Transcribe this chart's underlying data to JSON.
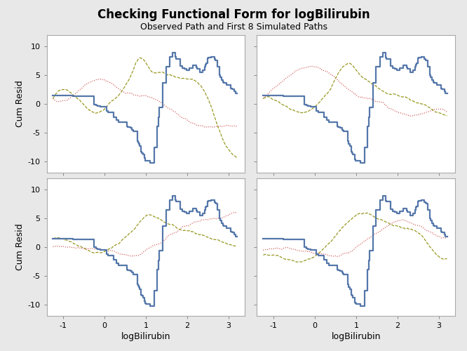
{
  "title": "Checking Functional Form for logBilirubin",
  "subtitle": "Observed Path and First 8 Simulated Paths",
  "xlabel": "logBilirubin",
  "ylabel": "Cum Resid",
  "xlim": [
    -1.4,
    3.4
  ],
  "ylim": [
    -12,
    12
  ],
  "xticks": [
    -1,
    0,
    1,
    2,
    3
  ],
  "yticks": [
    -10,
    -5,
    0,
    5,
    10
  ],
  "background_color": "#e8e8e8",
  "panel_bg": "#ffffff",
  "observed_color": "#5577aa",
  "sim_color_red": "#cc4444",
  "sim_color_olive": "#888800",
  "observed_lw": 1.6,
  "sim_lw_red": 0.85,
  "sim_lw_olive": 0.85,
  "title_fontsize": 12,
  "subtitle_fontsize": 9,
  "tick_fontsize": 8,
  "label_fontsize": 9
}
